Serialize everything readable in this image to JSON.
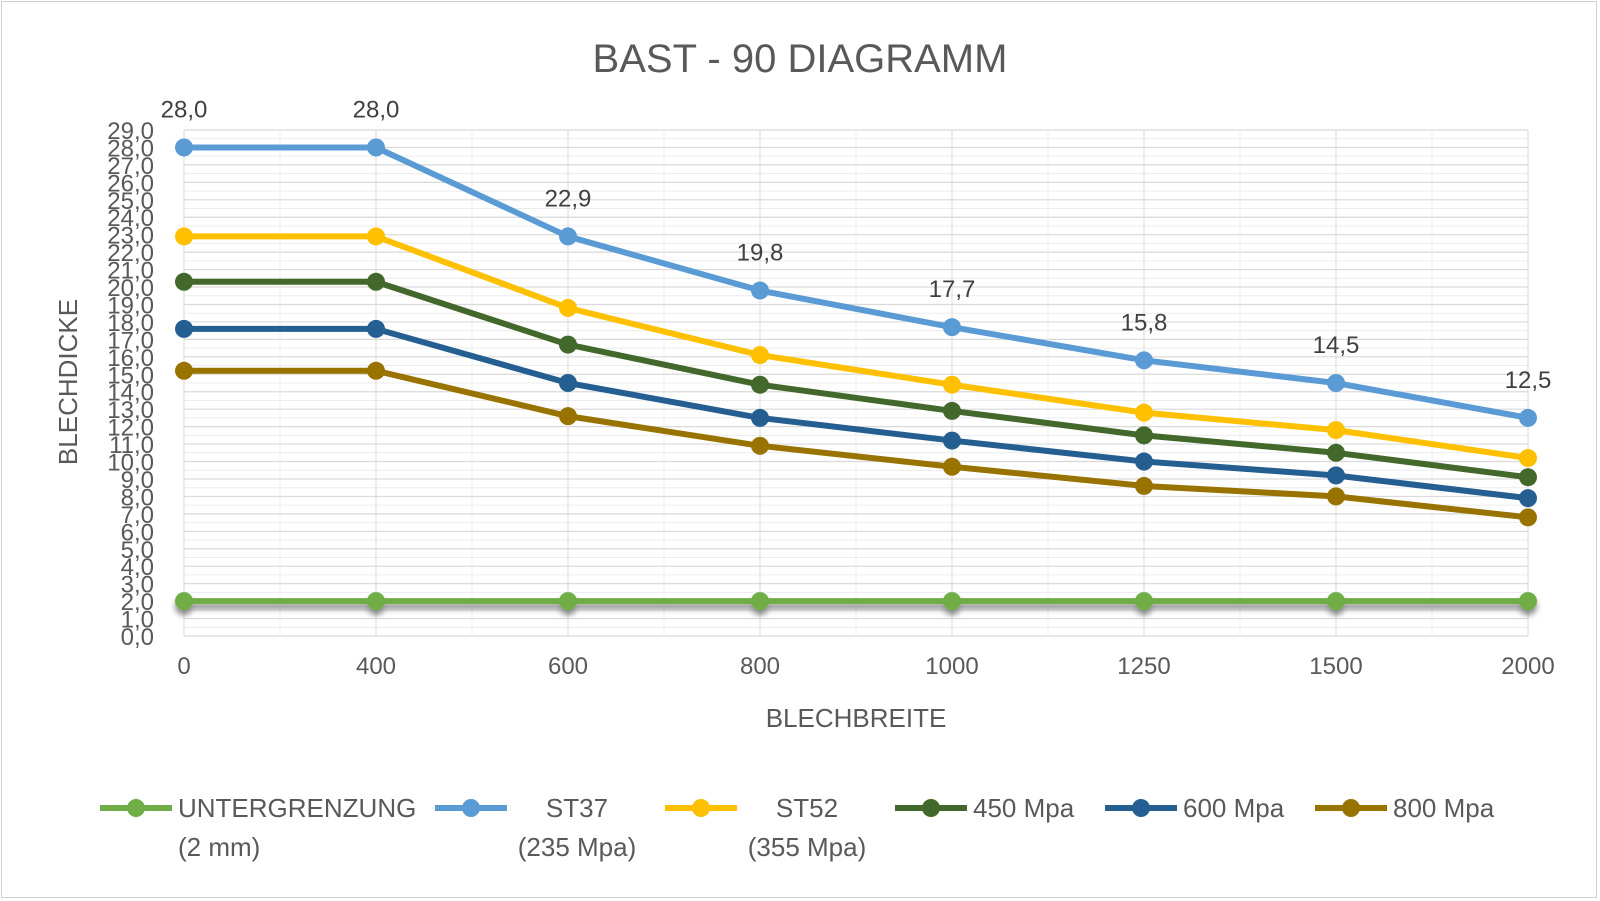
{
  "chart_data": {
    "type": "line",
    "title": "BAST - 90 DIAGRAMM",
    "xlabel": "BLECHBREITE",
    "ylabel": "BLECHDICKE",
    "categories": [
      "0",
      "400",
      "600",
      "800",
      "1000",
      "1250",
      "1500",
      "2000"
    ],
    "y_tick_labels": [
      "0,0",
      "1,0",
      "2,0",
      "3,0",
      "4,0",
      "5,0",
      "6,0",
      "7,0",
      "8,0",
      "9,0",
      "10,0",
      "11,0",
      "12,0",
      "13,0",
      "14,0",
      "15,0",
      "16,0",
      "17,0",
      "18,0",
      "19,0",
      "20,0",
      "21,0",
      "22,0",
      "23,0",
      "24,0",
      "25,0",
      "26,0",
      "27,0",
      "28,0",
      "29,0"
    ],
    "ylim": [
      0,
      29
    ],
    "grid": true,
    "legend_position": "bottom",
    "series": [
      {
        "name": "UNTERGRENZUNG (2 mm)",
        "legend_lines": [
          "UNTERGRENZUNG",
          "(2 mm)"
        ],
        "color": "#70AD47",
        "values": [
          2,
          2,
          2,
          2,
          2,
          2,
          2,
          2
        ]
      },
      {
        "name": "ST37 (235 Mpa)",
        "legend_lines": [
          "ST37",
          "(235 Mpa)"
        ],
        "color": "#5B9BD5",
        "values": [
          28.0,
          28.0,
          22.9,
          19.8,
          17.7,
          15.8,
          14.5,
          12.5
        ],
        "data_labels": [
          "28,0",
          "28,0",
          "22,9",
          "19,8",
          "17,7",
          "15,8",
          "14,5",
          "12,5"
        ]
      },
      {
        "name": "ST52 (355 Mpa)",
        "legend_lines": [
          "ST52",
          "(355 Mpa)"
        ],
        "color": "#FFC000",
        "values": [
          22.9,
          22.9,
          18.8,
          16.1,
          14.4,
          12.8,
          11.8,
          10.2
        ]
      },
      {
        "name": "450  Mpa",
        "legend_lines": [
          "450  Mpa"
        ],
        "color": "#43682B",
        "values": [
          20.3,
          20.3,
          16.7,
          14.4,
          12.9,
          11.5,
          10.5,
          9.1
        ]
      },
      {
        "name": "600 Mpa",
        "legend_lines": [
          "600 Mpa"
        ],
        "color": "#255E91",
        "values": [
          17.6,
          17.6,
          14.5,
          12.5,
          11.2,
          10.0,
          9.2,
          7.9
        ]
      },
      {
        "name": "800 Mpa",
        "legend_lines": [
          "800 Mpa"
        ],
        "color": "#997300",
        "values": [
          15.2,
          15.2,
          12.6,
          10.9,
          9.7,
          8.6,
          8.0,
          6.8
        ]
      }
    ]
  }
}
